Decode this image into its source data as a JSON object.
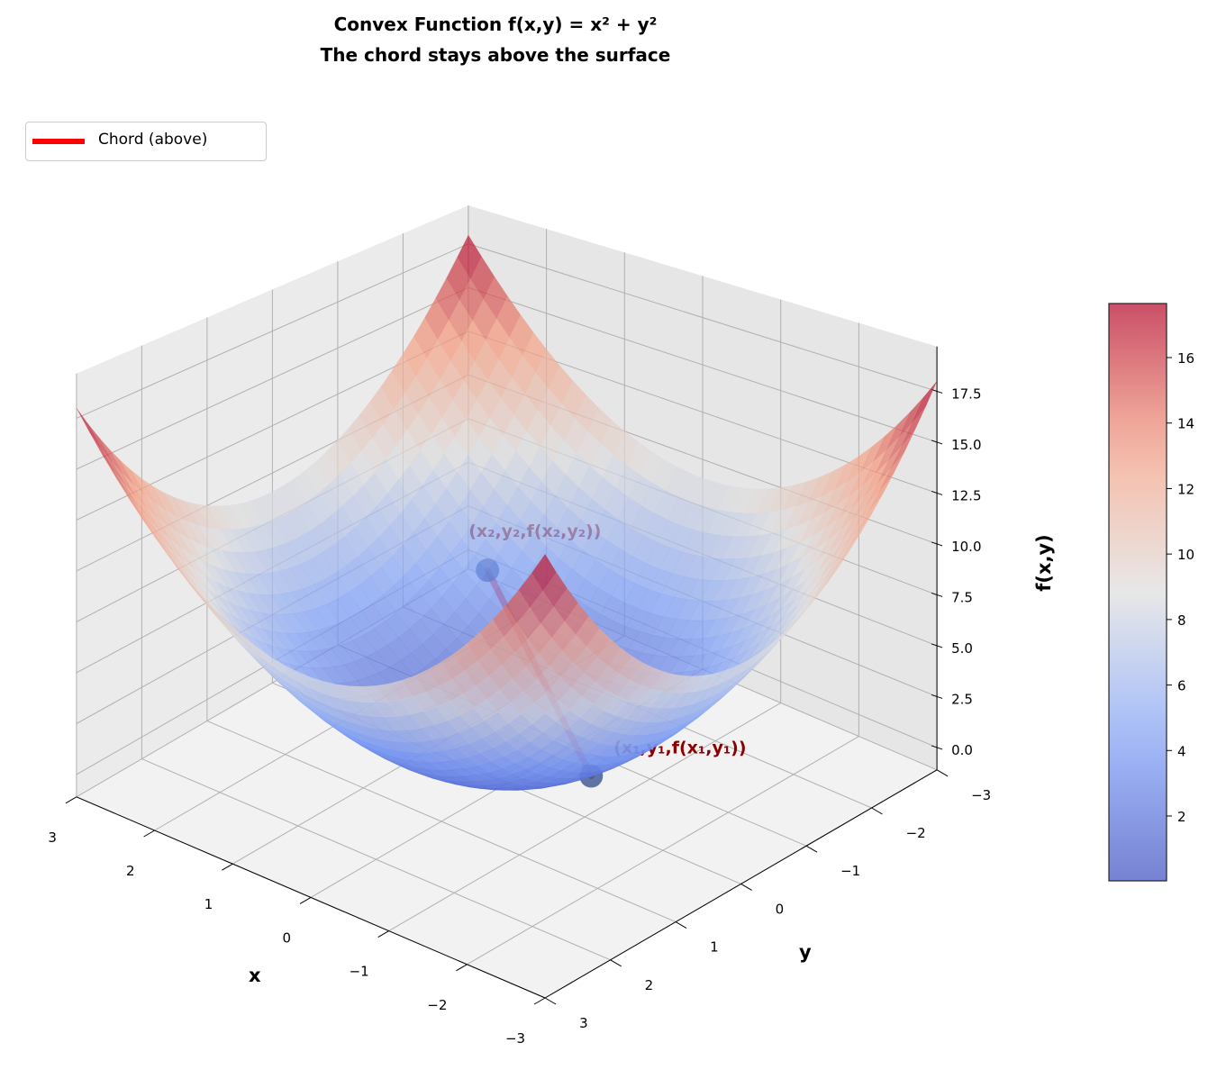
{
  "chart_data": {
    "type": "surface3d",
    "title": [
      "Convex Function f(x,y) = x² + y²",
      "The chord stays above the surface"
    ],
    "function": "x^2 + y^2",
    "xlabel": "x",
    "ylabel": "y",
    "zlabel": "f(x,y)",
    "xlim": [
      -3,
      3
    ],
    "ylim": [
      -3,
      3
    ],
    "zlim": [
      -1.1,
      19.7
    ],
    "xticks": [
      "3",
      "2",
      "1",
      "0",
      "−1",
      "−2",
      "−3"
    ],
    "xtick_values": [
      3,
      2,
      1,
      0,
      -1,
      -2,
      -3
    ],
    "yticks": [
      "3",
      "2",
      "1",
      "0",
      "−1",
      "−2",
      "−3"
    ],
    "ytick_values": [
      3,
      2,
      1,
      0,
      -1,
      -2,
      -3
    ],
    "zticks": [
      "0.0",
      "2.5",
      "5.0",
      "7.5",
      "10.0",
      "12.5",
      "15.0",
      "17.5"
    ],
    "ztick_values": [
      0,
      2.5,
      5,
      7.5,
      10,
      12.5,
      15,
      17.5
    ],
    "colormap": "coolwarm",
    "surface_alpha": 0.7,
    "colorbar": {
      "range": [
        0.02,
        17.65
      ],
      "ticks": [
        "2",
        "4",
        "6",
        "8",
        "10",
        "12",
        "14",
        "16"
      ],
      "tick_values": [
        2,
        4,
        6,
        8,
        10,
        12,
        14,
        16
      ]
    },
    "points": [
      {
        "label": "(x₁,y₁,f(x₁,y₁))",
        "x": -1.5,
        "y": 0.5,
        "z": 2.5
      },
      {
        "label": "(x₂,y₂,f(x₂,y₂))",
        "x": 1.5,
        "y": -1.5,
        "z": 4.5
      }
    ],
    "chord": {
      "color": "#ff0000"
    },
    "legend": {
      "entries": [
        "Chord (above)"
      ],
      "placement": "top-left"
    },
    "annotation_color": "#8b0000"
  }
}
